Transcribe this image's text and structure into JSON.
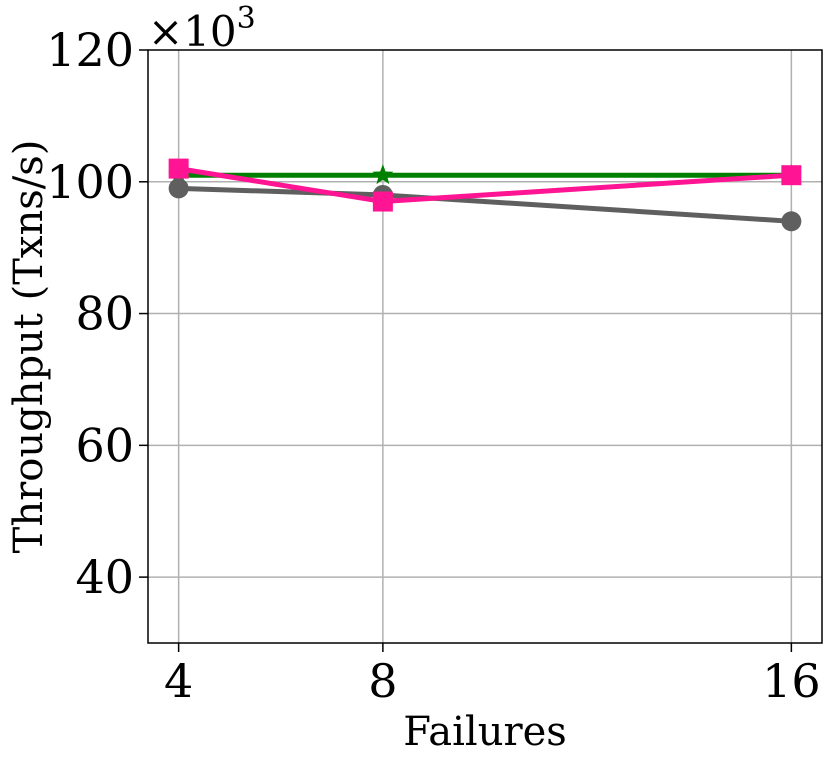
{
  "chart_data": {
    "type": "line",
    "title": "",
    "xlabel": "Failures",
    "ylabel": "Throughput (Txns/s)",
    "y_multiplier_label": "×10",
    "y_multiplier_exponent": "3",
    "x": [
      4,
      8,
      16
    ],
    "x_tick_labels": [
      "4",
      "8",
      "16"
    ],
    "y_ticks": [
      40,
      60,
      80,
      100,
      120
    ],
    "y_tick_labels": [
      "40",
      "60",
      "80",
      "100",
      "120"
    ],
    "xlim": [
      3.4,
      16.6
    ],
    "ylim": [
      30,
      120
    ],
    "grid": true,
    "legend": "none",
    "series": [
      {
        "color": "#008000",
        "marker": "star",
        "values": [
          101,
          101,
          101
        ]
      },
      {
        "color": "#5f5f5f",
        "marker": "circle",
        "values": [
          99,
          98,
          94
        ]
      },
      {
        "color": "#ff1493",
        "marker": "square",
        "values": [
          102,
          97,
          101
        ]
      }
    ]
  }
}
